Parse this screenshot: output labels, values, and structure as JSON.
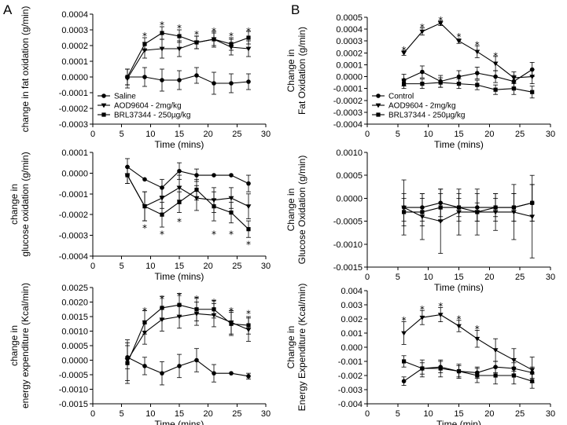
{
  "panel_labels": {
    "left": "A",
    "right": "B"
  },
  "chart_data": [
    {
      "id": "A1",
      "type": "line",
      "xlabel": "Time (mins)",
      "ylabel": [
        "change in fat oxidation (g/min)"
      ],
      "xlim": [
        0,
        30
      ],
      "ylim": [
        -0.0003,
        0.0004
      ],
      "xticks": [
        0,
        5,
        10,
        15,
        20,
        25,
        30
      ],
      "yticks": [
        -0.0003,
        -0.0002,
        -0.0001,
        0.0,
        0.0001,
        0.0002,
        0.0003,
        0.0004
      ],
      "ytick_labels": [
        "-0.0003",
        "-0.0002",
        "-0.0001",
        "0.0000",
        "0.0001",
        "0.0002",
        "0.0003",
        "0.0004"
      ],
      "x": [
        6,
        9,
        12,
        15,
        18,
        21,
        24,
        27
      ],
      "series": [
        {
          "name": "Saline",
          "marker": "circle",
          "values": [
            0.0,
            0.0,
            -2e-05,
            -2e-05,
            1e-05,
            -4e-05,
            -4e-05,
            -3e-05
          ],
          "err": [
            5e-05,
            6e-05,
            7e-05,
            6e-05,
            5e-05,
            7e-05,
            6e-05,
            5e-05
          ]
        },
        {
          "name": "AOD9604 - 2mg/kg",
          "marker": "triangle",
          "values": [
            -1e-05,
            0.00017,
            0.00018,
            0.00018,
            0.00022,
            0.00024,
            0.00019,
            0.00018
          ],
          "err": [
            6e-05,
            5e-05,
            6e-05,
            5e-05,
            4e-05,
            5e-05,
            5e-05,
            5e-05
          ]
        },
        {
          "name": "BRL37344 - 250µg/kg",
          "marker": "square",
          "values": [
            0.0,
            0.00021,
            0.00028,
            0.00026,
            0.00022,
            0.00024,
            0.00021,
            0.00025
          ],
          "err": [
            5e-05,
            4e-05,
            4e-05,
            4e-05,
            4e-05,
            4e-05,
            4e-05,
            4e-05
          ]
        }
      ],
      "annotations": [
        {
          "text": "*",
          "x": 9,
          "y": 0.00028
        },
        {
          "text": "*",
          "x": 12,
          "y": 0.00035
        },
        {
          "text": "*",
          "x": 15,
          "y": 0.00033
        },
        {
          "text": "*",
          "x": 18,
          "y": 0.00029
        },
        {
          "text": "*",
          "x": 21,
          "y": 0.00031
        },
        {
          "text": "*",
          "x": 24,
          "y": 0.00028
        },
        {
          "text": "*",
          "x": 27,
          "y": 0.00031
        }
      ],
      "legend": "lower-left"
    },
    {
      "id": "A2",
      "type": "line",
      "xlabel": "Time (mins)",
      "ylabel": [
        "change in",
        "glucose oxidation (g/min)"
      ],
      "xlim": [
        0,
        30
      ],
      "ylim": [
        -0.0004,
        0.0001
      ],
      "xticks": [
        0,
        5,
        10,
        15,
        20,
        25,
        30
      ],
      "yticks": [
        -0.0004,
        -0.0003,
        -0.0002,
        -0.0001,
        0.0,
        0.0001
      ],
      "ytick_labels": [
        "-0.0004",
        "-0.0003",
        "-0.0002",
        "-0.0001",
        "0.0000",
        "0.0001"
      ],
      "x": [
        6,
        9,
        12,
        15,
        18,
        21,
        24,
        27
      ],
      "series": [
        {
          "name": "Saline",
          "marker": "circle",
          "values": [
            3e-05,
            -3e-05,
            -7e-05,
            1e-05,
            -1e-05,
            -1e-05,
            -1e-05,
            -5e-05
          ],
          "err": [
            4e-05,
            0.0,
            4e-05,
            4e-05,
            3e-05,
            0.0,
            0.0,
            4e-05
          ]
        },
        {
          "name": "AOD9604 - 2mg/kg",
          "marker": "triangle",
          "values": [
            -1e-05,
            -0.00016,
            -0.00012,
            -7e-05,
            -0.00012,
            -0.00013,
            -0.00012,
            -0.00016
          ],
          "err": [
            4e-05,
            7e-05,
            5e-05,
            6e-05,
            6e-05,
            6e-05,
            5e-05,
            6e-05
          ]
        },
        {
          "name": "BRL37344 - 250µg/kg",
          "marker": "square",
          "values": [
            -1e-05,
            -0.00016,
            -0.0002,
            -0.00014,
            -8e-05,
            -0.00016,
            -0.00019,
            -0.00027
          ],
          "err": [
            4e-05,
            7e-05,
            6e-05,
            5e-05,
            5e-05,
            7e-05,
            5e-05,
            4e-05
          ]
        }
      ],
      "annotations": [
        {
          "text": "*",
          "x": 9,
          "y": -0.00025
        },
        {
          "text": "*",
          "x": 12,
          "y": -0.00028
        },
        {
          "text": "*",
          "x": 15,
          "y": -0.00022
        },
        {
          "text": "*",
          "x": 21,
          "y": -0.00028
        },
        {
          "text": "*",
          "x": 24,
          "y": -0.00028
        },
        {
          "text": "*",
          "x": 27,
          "y": -0.00033
        }
      ]
    },
    {
      "id": "A3",
      "type": "line",
      "xlabel": "Time (mins)",
      "ylabel": [
        "change in",
        "energy expenditure (Kcal/min)"
      ],
      "xlim": [
        0,
        30
      ],
      "ylim": [
        -0.0015,
        0.0025
      ],
      "xticks": [
        0,
        5,
        10,
        15,
        20,
        25,
        30
      ],
      "yticks": [
        -0.0015,
        -0.001,
        -0.0005,
        0.0,
        0.0005,
        0.001,
        0.0015,
        0.002,
        0.0025
      ],
      "ytick_labels": [
        "-0.0015",
        "-0.0010",
        "-0.0005",
        "0.0000",
        "0.0005",
        "0.0010",
        "0.0015",
        "0.0020",
        "0.0025"
      ],
      "x": [
        6,
        9,
        12,
        15,
        18,
        21,
        24,
        27
      ],
      "series": [
        {
          "name": "Saline",
          "marker": "circle",
          "values": [
            0.0001,
            -0.0002,
            -0.00045,
            -0.0002,
            0.0,
            -0.00045,
            -0.00045,
            -0.00055
          ],
          "err": [
            0.0004,
            0.0003,
            0.0004,
            0.0004,
            0.0004,
            0.0003,
            0.0,
            0.0001
          ]
        },
        {
          "name": "AOD9604 - 2mg/kg",
          "marker": "triangle",
          "values": [
            0.0,
            0.00095,
            0.0014,
            0.0015,
            0.0016,
            0.00155,
            0.0013,
            0.00105
          ],
          "err": [
            0.0007,
            0.0004,
            0.0004,
            0.0004,
            0.0004,
            0.0004,
            0.0004,
            0.0004
          ]
        },
        {
          "name": "BRL37344 - 250µg/kg",
          "marker": "square",
          "values": [
            -0.0001,
            0.0013,
            0.0018,
            0.0019,
            0.00175,
            0.00175,
            0.00125,
            0.0012
          ],
          "err": [
            0.0007,
            0.0004,
            0.0004,
            0.0004,
            0.0004,
            0.0003,
            0.0004,
            0.0003
          ]
        }
      ],
      "annotations": [
        {
          "text": "*",
          "x": 9,
          "y": 0.0018
        },
        {
          "text": "*",
          "x": 12,
          "y": 0.0022
        },
        {
          "text": "*",
          "x": 15,
          "y": 0.0023
        },
        {
          "text": "*",
          "x": 18,
          "y": 0.0022
        },
        {
          "text": "*",
          "x": 21,
          "y": 0.0021
        },
        {
          "text": "*",
          "x": 24,
          "y": 0.0018
        },
        {
          "text": "*",
          "x": 27,
          "y": 0.0017
        }
      ]
    },
    {
      "id": "B1",
      "type": "line",
      "xlabel": "Time (mins)",
      "ylabel": [
        "Change in",
        "Fat Oxidation (g/min)"
      ],
      "xlim": [
        0,
        30
      ],
      "ylim": [
        -0.0004,
        0.0005
      ],
      "xticks": [
        0,
        5,
        10,
        15,
        20,
        25,
        30
      ],
      "yticks": [
        -0.0004,
        -0.0003,
        -0.0002,
        -0.0001,
        0.0,
        0.0001,
        0.0002,
        0.0003,
        0.0004,
        0.0005
      ],
      "ytick_labels": [
        "-0.0004",
        "-0.0003",
        "-0.0002",
        "-0.0001",
        "0.0000",
        "0.0001",
        "0.0002",
        "0.0003",
        "0.0004",
        "0.0005"
      ],
      "x": [
        6,
        9,
        12,
        15,
        18,
        21,
        24,
        27
      ],
      "series": [
        {
          "name": "Control",
          "marker": "circle",
          "values": [
            -3e-05,
            4e-05,
            -4e-05,
            0.0,
            3e-05,
            0.0,
            -4e-05,
            6e-05
          ],
          "err": [
            5e-05,
            5e-05,
            5e-05,
            5e-05,
            5e-05,
            5e-05,
            5e-05,
            6e-05
          ]
        },
        {
          "name": "AOD9604 - 2mg/kg",
          "marker": "triangle",
          "values": [
            0.0002,
            0.00038,
            0.00045,
            0.0003,
            0.00021,
            0.00011,
            -1e-05,
            0.0
          ],
          "err": [
            2e-05,
            3e-05,
            2e-05,
            2e-05,
            5e-05,
            6e-05,
            5e-05,
            6e-05
          ]
        },
        {
          "name": "BRL37344 - 250µg/kg",
          "marker": "square",
          "values": [
            -6e-05,
            -6e-05,
            -5e-05,
            -6e-05,
            -7e-05,
            -0.00011,
            -0.0001,
            -0.00013
          ],
          "err": [
            4e-05,
            4e-05,
            4e-05,
            4e-05,
            4e-05,
            4e-05,
            5e-05,
            5e-05
          ]
        }
      ],
      "annotations": [
        {
          "text": "*",
          "x": 6,
          "y": 0.00025
        },
        {
          "text": "*",
          "x": 9,
          "y": 0.00044
        },
        {
          "text": "*",
          "x": 12,
          "y": 0.0005
        },
        {
          "text": "*",
          "x": 15,
          "y": 0.00036
        },
        {
          "text": "*",
          "x": 18,
          "y": 0.00029
        },
        {
          "text": "*",
          "x": 21,
          "y": 0.0002
        }
      ],
      "legend": "lower-left"
    },
    {
      "id": "B2",
      "type": "line",
      "xlabel": "Time (mins)",
      "ylabel": [
        "Change in",
        "Glucose Oxidation (g/min)"
      ],
      "xlim": [
        0,
        30
      ],
      "ylim": [
        -0.0015,
        0.001
      ],
      "xticks": [
        0,
        5,
        10,
        15,
        20,
        25,
        30
      ],
      "yticks": [
        -0.0015,
        -0.001,
        -0.0005,
        0.0,
        0.0005,
        0.001
      ],
      "ytick_labels": [
        "-0.0015",
        "-0.0010",
        "-0.0005",
        "0.0000",
        "0.0005",
        "0.0010"
      ],
      "x": [
        6,
        9,
        12,
        15,
        18,
        21,
        24,
        27
      ],
      "series": [
        {
          "name": "Control",
          "marker": "circle",
          "values": [
            -0.0002,
            -0.0002,
            -0.0001,
            -0.0002,
            -0.0002,
            -0.0002,
            -0.0002,
            -0.0001
          ],
          "err": [
            0.0003,
            0.0003,
            0.0003,
            0.0003,
            0.0003,
            0.0003,
            0.0003,
            0.0004
          ]
        },
        {
          "name": "AOD9604 - 2mg/kg",
          "marker": "triangle",
          "values": [
            -0.0002,
            -0.0004,
            -0.0005,
            -0.0003,
            -0.0003,
            -0.0003,
            -0.0003,
            -0.0004
          ],
          "err": [
            0.0006,
            0.0005,
            0.0007,
            0.0005,
            0.0005,
            0.0004,
            0.0006,
            0.0009
          ]
        },
        {
          "name": "BRL37344 - 250µg/kg",
          "marker": "square",
          "values": [
            -0.0003,
            -0.0003,
            -0.0002,
            -0.0002,
            -0.0003,
            -0.0002,
            -0.0002,
            -0.0001
          ],
          "err": [
            0.0003,
            0.0003,
            0.0003,
            0.0002,
            0.0002,
            0.0002,
            0.0003,
            0.0004
          ]
        }
      ]
    },
    {
      "id": "B3",
      "type": "line",
      "xlabel": "Time (min)",
      "ylabel": [
        "Change in",
        "Energy Expenditure (Kcal/min)"
      ],
      "xlim": [
        0,
        30
      ],
      "ylim": [
        -0.004,
        0.004
      ],
      "xticks": [
        0,
        5,
        10,
        15,
        20,
        25,
        30
      ],
      "yticks": [
        -0.004,
        -0.003,
        -0.002,
        -0.001,
        0.0,
        0.001,
        0.002,
        0.003,
        0.004
      ],
      "ytick_labels": [
        "-0.004",
        "-0.003",
        "-0.002",
        "-0.001",
        "0.000",
        "0.001",
        "0.002",
        "0.003",
        "0.004"
      ],
      "x": [
        6,
        9,
        12,
        15,
        18,
        21,
        24,
        27
      ],
      "series": [
        {
          "name": "Control",
          "marker": "circle",
          "values": [
            -0.0024,
            -0.0015,
            -0.0014,
            -0.0017,
            -0.0018,
            -0.0014,
            -0.0015,
            -0.0018
          ],
          "err": [
            0.0003,
            0.0004,
            0.0004,
            0.0004,
            0.0004,
            0.0004,
            0.0004,
            0.0004
          ]
        },
        {
          "name": "AOD9604 - 2mg/kg",
          "marker": "triangle",
          "values": [
            0.001,
            0.0021,
            0.0023,
            0.0015,
            0.0006,
            -0.0002,
            -0.0009,
            -0.0016
          ],
          "err": [
            0.0008,
            0.0005,
            0.0005,
            0.0004,
            0.0006,
            0.0008,
            0.0008,
            0.0009
          ]
        },
        {
          "name": "BRL37344 - 250µg/kg",
          "marker": "square",
          "values": [
            -0.001,
            -0.0015,
            -0.0015,
            -0.0017,
            -0.002,
            -0.002,
            -0.002,
            -0.0024
          ],
          "err": [
            0.0004,
            0.0006,
            0.0006,
            0.0005,
            0.0005,
            0.0006,
            0.0006,
            0.0005
          ]
        }
      ],
      "annotations": [
        {
          "text": "*",
          "x": 6,
          "y": 0.0021
        },
        {
          "text": "*",
          "x": 9,
          "y": 0.0029
        },
        {
          "text": "*",
          "x": 12,
          "y": 0.0031
        },
        {
          "text": "*",
          "x": 15,
          "y": 0.0022
        },
        {
          "text": "*",
          "x": 18,
          "y": 0.0015
        }
      ]
    }
  ]
}
